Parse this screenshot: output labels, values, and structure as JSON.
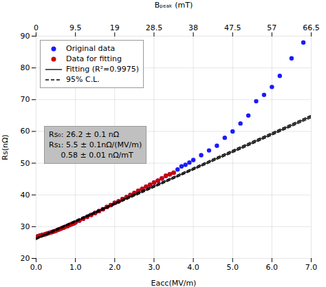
{
  "chart_data": {
    "type": "scatter",
    "xlabel": "Eacc(MV/m)",
    "ylabel": "Rs(nΩ)",
    "x2label": "Bₚₑₐₖ (mT)",
    "xlim": [
      0,
      7
    ],
    "ylim": [
      20,
      90
    ],
    "xticks": [
      0,
      1,
      2,
      3,
      4,
      5,
      6,
      7
    ],
    "yticks": [
      20,
      30,
      40,
      50,
      60,
      70,
      80,
      90
    ],
    "x2lim": [
      0,
      66.5
    ],
    "x2ticks": [
      0,
      9.5,
      19,
      28.5,
      38,
      47.5,
      57,
      66.5
    ],
    "grid": true,
    "legend": "upper left",
    "series": [
      {
        "name": "Original data",
        "type": "scatter",
        "marker": "circle",
        "color": "#1a1aff",
        "x": [
          0.05,
          0.1,
          0.15,
          0.2,
          0.25,
          0.3,
          0.35,
          0.4,
          0.45,
          0.5,
          0.55,
          0.6,
          0.65,
          0.7,
          0.75,
          0.8,
          0.85,
          0.9,
          0.95,
          1.0,
          1.1,
          1.2,
          1.3,
          1.4,
          1.5,
          1.6,
          1.7,
          1.8,
          1.9,
          2.0,
          2.1,
          2.2,
          2.3,
          2.4,
          2.5,
          2.6,
          2.7,
          2.8,
          2.9,
          3.0,
          3.1,
          3.2,
          3.3,
          3.4,
          3.5,
          3.6,
          3.7,
          3.8,
          3.9,
          4.0,
          4.2,
          4.4,
          4.6,
          4.8,
          5.0,
          5.2,
          5.4,
          5.6,
          5.8,
          6.0,
          6.2,
          6.5,
          6.8
        ],
        "values": [
          27.0,
          27.2,
          27.4,
          27.5,
          27.7,
          27.9,
          28.1,
          28.3,
          28.5,
          28.7,
          29.0,
          29.2,
          29.5,
          29.7,
          30.0,
          30.2,
          30.5,
          30.8,
          31.0,
          31.3,
          31.9,
          32.5,
          33.1,
          33.7,
          34.3,
          34.9,
          35.5,
          36.2,
          36.8,
          37.5,
          38.0,
          38.7,
          39.3,
          40.0,
          40.6,
          41.3,
          41.9,
          42.6,
          43.2,
          43.9,
          44.5,
          45.2,
          46.0,
          46.5,
          47.0,
          48.0,
          49.0,
          49.5,
          50.2,
          51.0,
          52.5,
          54.0,
          55.5,
          58.0,
          60.0,
          62.5,
          65.0,
          69.5,
          71.5,
          74.0,
          77.5,
          83.0,
          88.0
        ]
      },
      {
        "name": "Data for fitting",
        "type": "scatter",
        "marker": "circle",
        "color": "#cc0000",
        "x": [
          0.05,
          0.1,
          0.15,
          0.2,
          0.25,
          0.3,
          0.35,
          0.4,
          0.45,
          0.5,
          0.55,
          0.6,
          0.65,
          0.7,
          0.75,
          0.8,
          0.85,
          0.9,
          0.95,
          1.0,
          1.1,
          1.2,
          1.3,
          1.4,
          1.5,
          1.6,
          1.7,
          1.8,
          1.9,
          2.0,
          2.1,
          2.2,
          2.3,
          2.4,
          2.5,
          2.6,
          2.7,
          2.8,
          2.9,
          3.0,
          3.1,
          3.2,
          3.3,
          3.4,
          3.5
        ],
        "values": [
          27.0,
          27.2,
          27.4,
          27.5,
          27.7,
          27.9,
          28.1,
          28.3,
          28.5,
          28.7,
          29.0,
          29.2,
          29.5,
          29.7,
          30.0,
          30.2,
          30.5,
          30.8,
          31.0,
          31.3,
          31.9,
          32.5,
          33.1,
          33.7,
          34.3,
          34.9,
          35.5,
          36.2,
          36.8,
          37.5,
          38.0,
          38.7,
          39.3,
          40.0,
          40.6,
          41.3,
          41.9,
          42.6,
          43.2,
          43.9,
          44.5,
          45.2,
          46.0,
          46.5,
          47.0
        ]
      },
      {
        "name": "Fitting (R²=0.9975)",
        "type": "line",
        "line_style": "solid",
        "color": "#000000",
        "x": [
          0,
          7
        ],
        "values": [
          26.2,
          64.7
        ]
      },
      {
        "name": "95% C.L.",
        "type": "line",
        "line_style": "dashed",
        "color": "#000000",
        "x": [
          0,
          7
        ],
        "upper": [
          26.45,
          65.1
        ],
        "lower": [
          25.95,
          64.3
        ]
      }
    ],
    "annotations": [
      {
        "text": "Rs₀: 26.2 ± 0.1 nΩ\nRs₁: 5.5 ± 0.1nΩ/(MV/m)\n     0.58 ± 0.01 nΩ/mT",
        "color": "#c0c0c0"
      }
    ]
  }
}
